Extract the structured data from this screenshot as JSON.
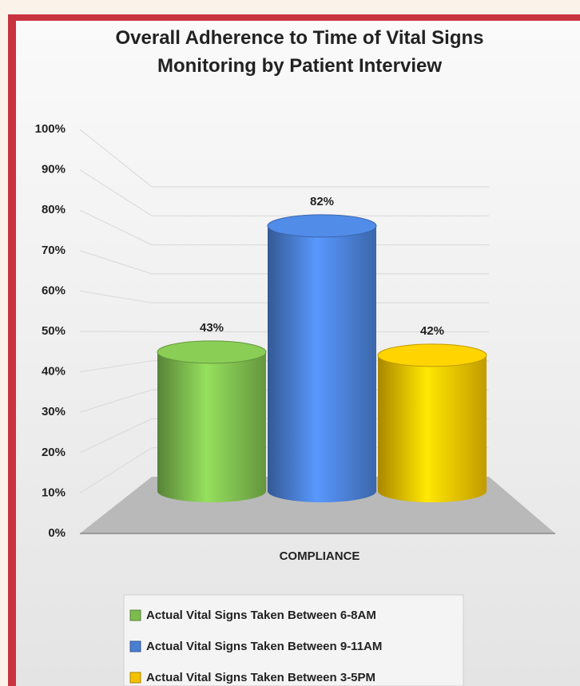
{
  "chart_data": {
    "type": "bar",
    "title": "Overall Adherence to Time of Vital Signs Monitoring by Patient Interview",
    "categories": [
      "COMPLIANCE"
    ],
    "series": [
      {
        "name": "Actual Vital Signs Taken Between 6-8AM",
        "color": "#7dbb4e",
        "values": [
          43
        ],
        "value_labels": [
          "43%"
        ]
      },
      {
        "name": "Actual Vital Signs Taken Between 9-11AM",
        "color": "#4a7fd4",
        "values": [
          82
        ],
        "value_labels": [
          "82%"
        ]
      },
      {
        "name": "Actual Vital Signs Taken Between 3-5PM",
        "color": "#f3c100",
        "values": [
          42
        ],
        "value_labels": [
          "42%"
        ]
      }
    ],
    "ylim": [
      0,
      100
    ],
    "yticks": [
      {
        "value": 0,
        "label": "0%"
      },
      {
        "value": 10,
        "label": "10%"
      },
      {
        "value": 20,
        "label": "20%"
      },
      {
        "value": 30,
        "label": "30%"
      },
      {
        "value": 40,
        "label": "40%"
      },
      {
        "value": 50,
        "label": "50%"
      },
      {
        "value": 60,
        "label": "60%"
      },
      {
        "value": 70,
        "label": "70%"
      },
      {
        "value": 80,
        "label": "80%"
      },
      {
        "value": 90,
        "label": "90%"
      },
      {
        "value": 100,
        "label": "100%"
      }
    ],
    "grid": true,
    "legend": "bottom"
  }
}
